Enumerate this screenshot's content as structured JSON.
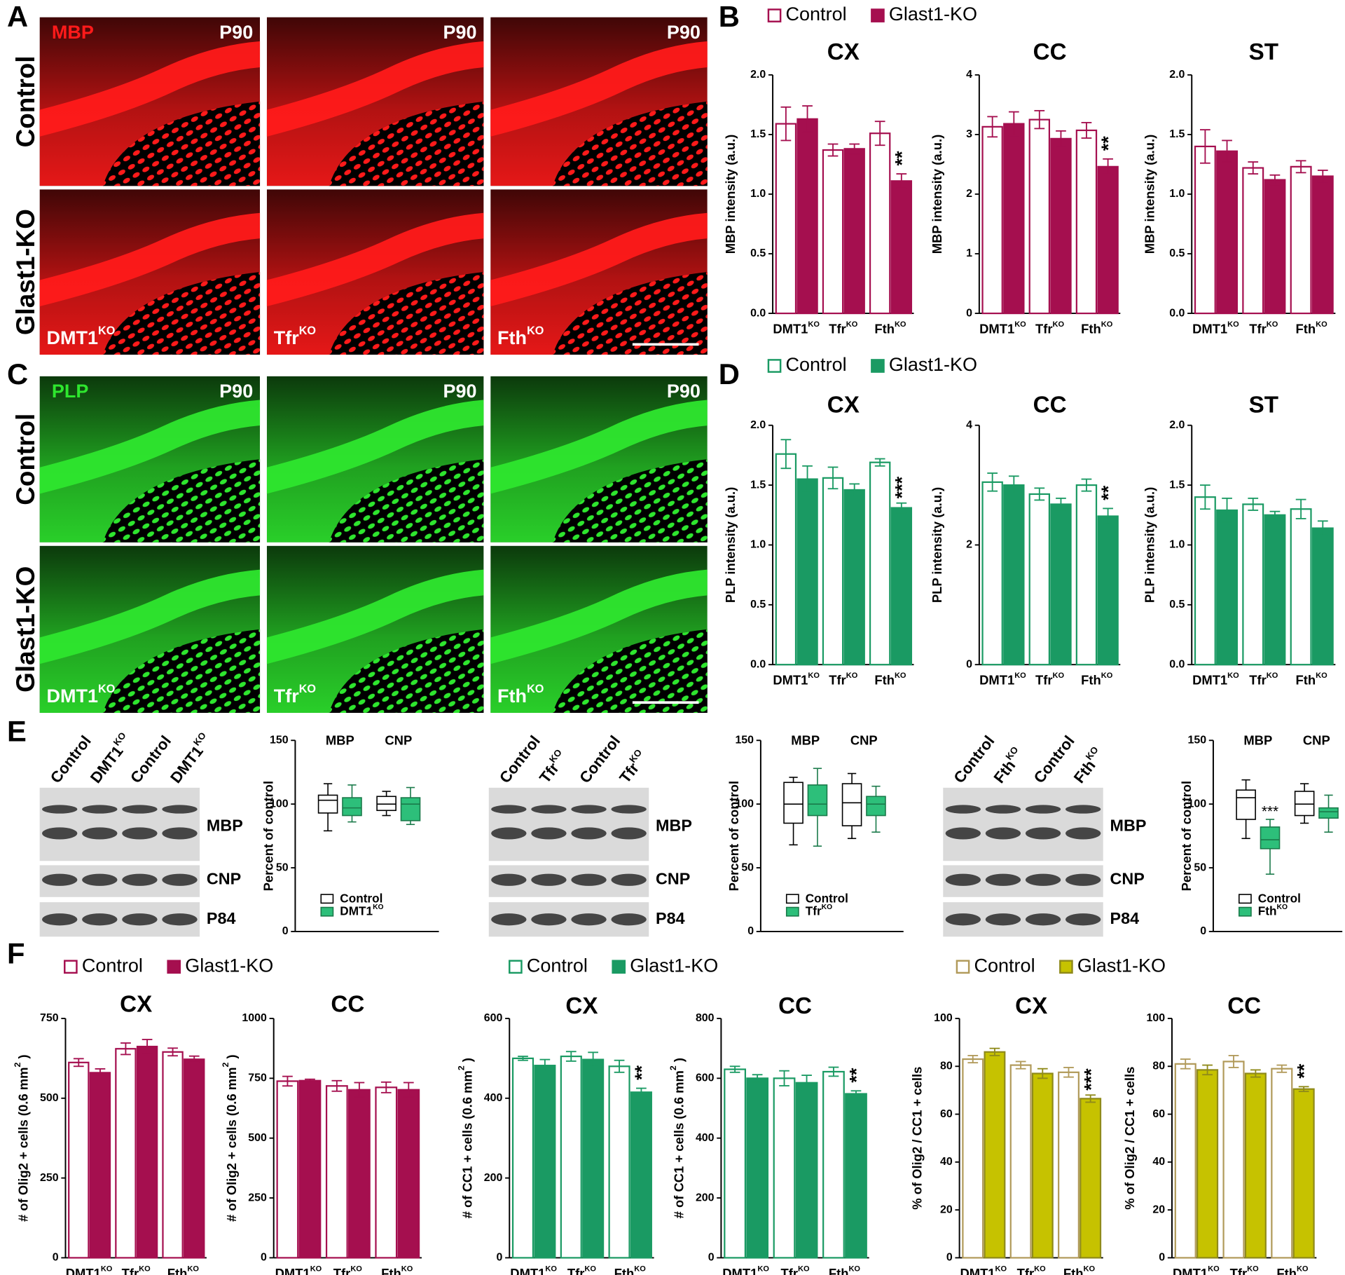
{
  "panel_labels": [
    "A",
    "B",
    "C",
    "D",
    "E",
    "F"
  ],
  "image_panels": [
    {
      "stain": "MBP",
      "color": "#ff1a1a",
      "age": "P90",
      "rows": [
        "Control",
        "Glast1-KO"
      ],
      "columns": [
        {
          "label": "DMT1",
          "superscript": "KO"
        },
        {
          "label": "Tfr",
          "superscript": "KO"
        },
        {
          "label": "Fth",
          "superscript": "KO"
        }
      ]
    },
    {
      "stain": "PLP",
      "color": "#2ee62e",
      "age": "P90",
      "rows": [
        "Control",
        "Glast1-KO"
      ],
      "columns": [
        {
          "label": "DMT1",
          "superscript": "KO"
        },
        {
          "label": "Tfr",
          "superscript": "KO"
        },
        {
          "label": "Fth",
          "superscript": "KO"
        }
      ]
    }
  ],
  "blots": [
    {
      "lanes": [
        {
          "label": "Control"
        },
        {
          "label": "DMT1",
          "superscript": "KO"
        },
        {
          "label": "Control"
        },
        {
          "label": "DMT1",
          "superscript": "KO"
        }
      ],
      "bands": [
        "MBP",
        "CNP",
        "P84"
      ]
    },
    {
      "lanes": [
        {
          "label": "Control"
        },
        {
          "label": "Tfr",
          "superscript": "KO"
        },
        {
          "label": "Control"
        },
        {
          "label": "Tfr",
          "superscript": "KO"
        }
      ],
      "bands": [
        "MBP",
        "CNP",
        "P84"
      ]
    },
    {
      "lanes": [
        {
          "label": "Control"
        },
        {
          "label": "Fth",
          "superscript": "KO"
        },
        {
          "label": "Control"
        },
        {
          "label": "Fth",
          "superscript": "KO"
        }
      ],
      "bands": [
        "MBP",
        "CNP",
        "P84"
      ]
    }
  ],
  "chart_data": [
    {
      "type": "bar",
      "title": "CX",
      "ylabel": "MBP intensity (a.u.)",
      "categories": [
        "DMT1",
        "Tfr",
        "Fth"
      ],
      "category_superscript": "KO",
      "ylim": [
        0,
        2
      ],
      "yticks": [
        {
          "value": 0,
          "label": "0.0"
        },
        0.5,
        {
          "value": 1,
          "label": "1.0"
        },
        1.5,
        {
          "value": 2,
          "label": "2.0"
        }
      ],
      "series": [
        {
          "name": "Control",
          "color": "#ffffff",
          "edge": "#a50f4f",
          "values": [
            1.59,
            1.37,
            1.51
          ],
          "errors": [
            0.14,
            0.05,
            0.1
          ]
        },
        {
          "name": "Glast1-KO",
          "color": "#a50f4f",
          "edge": "#a50f4f",
          "values": [
            1.63,
            1.38,
            1.11
          ],
          "errors": [
            0.11,
            0.04,
            0.06
          ]
        }
      ],
      "significance": [
        null,
        null,
        "**"
      ]
    },
    {
      "type": "bar",
      "title": "CC",
      "ylabel": "MBP intensity (a.u.)",
      "categories": [
        "DMT1",
        "Tfr",
        "Fth"
      ],
      "category_superscript": "KO",
      "ylim": [
        0,
        4
      ],
      "yticks": [
        0,
        1,
        2,
        3,
        4
      ],
      "series": [
        {
          "name": "Control",
          "color": "#ffffff",
          "edge": "#a50f4f",
          "values": [
            3.13,
            3.25,
            3.07
          ],
          "errors": [
            0.17,
            0.15,
            0.13
          ]
        },
        {
          "name": "Glast1-KO",
          "color": "#a50f4f",
          "edge": "#a50f4f",
          "values": [
            3.18,
            2.93,
            2.46
          ],
          "errors": [
            0.2,
            0.13,
            0.13
          ]
        }
      ],
      "significance": [
        null,
        null,
        "**"
      ]
    },
    {
      "type": "bar",
      "title": "ST",
      "ylabel": "MBP intensity (a.u.)",
      "categories": [
        "DMT1",
        "Tfr",
        "Fth"
      ],
      "category_superscript": "KO",
      "ylim": [
        0,
        2
      ],
      "yticks": [
        {
          "value": 0,
          "label": "0.0"
        },
        0.5,
        {
          "value": 1,
          "label": "1.0"
        },
        1.5,
        {
          "value": 2,
          "label": "2.0"
        }
      ],
      "series": [
        {
          "name": "Control",
          "color": "#ffffff",
          "edge": "#a50f4f",
          "values": [
            1.4,
            1.22,
            1.23
          ],
          "errors": [
            0.14,
            0.05,
            0.05
          ]
        },
        {
          "name": "Glast1-KO",
          "color": "#a50f4f",
          "edge": "#a50f4f",
          "values": [
            1.36,
            1.12,
            1.15
          ],
          "errors": [
            0.09,
            0.04,
            0.05
          ]
        }
      ],
      "significance": [
        null,
        null,
        null
      ]
    },
    {
      "type": "bar",
      "title": "CX",
      "ylabel": "PLP intensity (a.u.)",
      "categories": [
        "DMT1",
        "Tfr",
        "Fth"
      ],
      "category_superscript": "KO",
      "ylim": [
        0,
        2
      ],
      "yticks": [
        {
          "value": 0,
          "label": "0.0"
        },
        0.5,
        {
          "value": 1,
          "label": "1.0"
        },
        1.5,
        {
          "value": 2,
          "label": "2.0"
        }
      ],
      "series": [
        {
          "name": "Control",
          "color": "#ffffff",
          "edge": "#1a9a63",
          "values": [
            1.76,
            1.56,
            1.69
          ],
          "errors": [
            0.12,
            0.09,
            0.03
          ]
        },
        {
          "name": "Glast1-KO",
          "color": "#1a9a63",
          "edge": "#1a9a63",
          "values": [
            1.55,
            1.46,
            1.31
          ],
          "errors": [
            0.11,
            0.05,
            0.04
          ]
        }
      ],
      "significance": [
        null,
        null,
        "***"
      ]
    },
    {
      "type": "bar",
      "title": "CC",
      "ylabel": "PLP intensity (a.u.)",
      "categories": [
        "DMT1",
        "Tfr",
        "Fth"
      ],
      "category_superscript": "KO",
      "ylim": [
        0,
        4
      ],
      "yticks": [
        0,
        2,
        4
      ],
      "series": [
        {
          "name": "Control",
          "color": "#ffffff",
          "edge": "#1a9a63",
          "values": [
            3.05,
            2.85,
            3.0
          ],
          "errors": [
            0.15,
            0.1,
            0.1
          ]
        },
        {
          "name": "Glast1-KO",
          "color": "#1a9a63",
          "edge": "#1a9a63",
          "values": [
            3.0,
            2.68,
            2.48
          ],
          "errors": [
            0.15,
            0.1,
            0.13
          ]
        }
      ],
      "significance": [
        null,
        null,
        "**"
      ]
    },
    {
      "type": "bar",
      "title": "ST",
      "ylabel": "PLP intensity (a.u.)",
      "categories": [
        "DMT1",
        "Tfr",
        "Fth"
      ],
      "category_superscript": "KO",
      "ylim": [
        0,
        2
      ],
      "yticks": [
        {
          "value": 0,
          "label": "0.0"
        },
        0.5,
        {
          "value": 1,
          "label": "1.0"
        },
        1.5,
        {
          "value": 2,
          "label": "2.0"
        }
      ],
      "series": [
        {
          "name": "Control",
          "color": "#ffffff",
          "edge": "#1a9a63",
          "values": [
            1.4,
            1.34,
            1.3
          ],
          "errors": [
            0.1,
            0.05,
            0.08
          ]
        },
        {
          "name": "Glast1-KO",
          "color": "#1a9a63",
          "edge": "#1a9a63",
          "values": [
            1.29,
            1.25,
            1.14
          ],
          "errors": [
            0.1,
            0.03,
            0.06
          ]
        }
      ],
      "significance": [
        null,
        null,
        null
      ]
    },
    {
      "type": "box",
      "ylabel": "Percent of control",
      "categories": [
        "MBP",
        "CNP"
      ],
      "ylim": [
        0,
        150
      ],
      "yticks": [
        0,
        50,
        100,
        150
      ],
      "series": [
        {
          "name": "Control",
          "color": "#ffffff",
          "edge": "#000000",
          "values": [
            {
              "min": 79,
              "q1": 93,
              "median": 103,
              "q3": 107,
              "max": 116
            },
            {
              "min": 91,
              "q1": 95,
              "median": 100,
              "q3": 106,
              "max": 110
            }
          ]
        },
        {
          "name": "DMT1",
          "superscript": "KO",
          "color": "#2dbf7a",
          "edge": "#1a7a4a",
          "values": [
            {
              "min": 86,
              "q1": 91,
              "median": 97,
              "q3": 105,
              "max": 115
            },
            {
              "min": 84,
              "q1": 87,
              "median": 100,
              "q3": 105,
              "max": 113
            }
          ]
        }
      ],
      "significance": [
        null,
        null
      ]
    },
    {
      "type": "box",
      "ylabel": "Percent of control",
      "categories": [
        "MBP",
        "CNP"
      ],
      "ylim": [
        0,
        150
      ],
      "yticks": [
        0,
        50,
        100,
        150
      ],
      "series": [
        {
          "name": "Control",
          "color": "#ffffff",
          "edge": "#000000",
          "values": [
            {
              "min": 68,
              "q1": 85,
              "median": 100,
              "q3": 117,
              "max": 121
            },
            {
              "min": 73,
              "q1": 83,
              "median": 101,
              "q3": 116,
              "max": 124
            }
          ]
        },
        {
          "name": "Tfr",
          "superscript": "KO",
          "color": "#2dbf7a",
          "edge": "#1a7a4a",
          "values": [
            {
              "min": 67,
              "q1": 91,
              "median": 100,
              "q3": 115,
              "max": 128
            },
            {
              "min": 78,
              "q1": 91,
              "median": 100,
              "q3": 106,
              "max": 114
            }
          ]
        }
      ],
      "significance": [
        null,
        null
      ]
    },
    {
      "type": "box",
      "ylabel": "Percent of control",
      "categories": [
        "MBP",
        "CNP"
      ],
      "ylim": [
        0,
        150
      ],
      "yticks": [
        0,
        50,
        100,
        150
      ],
      "series": [
        {
          "name": "Control",
          "color": "#ffffff",
          "edge": "#000000",
          "values": [
            {
              "min": 73,
              "q1": 88,
              "median": 105,
              "q3": 111,
              "max": 119
            },
            {
              "min": 85,
              "q1": 91,
              "median": 100,
              "q3": 110,
              "max": 116
            }
          ]
        },
        {
          "name": "Fth",
          "superscript": "KO",
          "color": "#2dbf7a",
          "edge": "#1a7a4a",
          "values": [
            {
              "min": 45,
              "q1": 65,
              "median": 72,
              "q3": 82,
              "max": 88
            },
            {
              "min": 78,
              "q1": 89,
              "median": 94,
              "q3": 97,
              "max": 107
            }
          ]
        }
      ],
      "significance": [
        "***",
        null
      ]
    },
    {
      "type": "bar",
      "title": "CX",
      "ylabel": "# of Olig2 + cells (0.6 mm",
      "ylabel_superscript": "2",
      "ylabel_suffix": " )",
      "categories": [
        "DMT1",
        "Tfr",
        "Fth"
      ],
      "category_superscript": "KO",
      "ylim": [
        0,
        750
      ],
      "yticks": [
        0,
        250,
        500,
        750
      ],
      "series": [
        {
          "name": "Control",
          "color": "#ffffff",
          "edge": "#a50f4f",
          "values": [
            612,
            655,
            645
          ],
          "errors": [
            12,
            18,
            12
          ]
        },
        {
          "name": "Glast1-KO",
          "color": "#a50f4f",
          "edge": "#a50f4f",
          "values": [
            580,
            662,
            622
          ],
          "errors": [
            12,
            22,
            10
          ]
        }
      ],
      "significance": [
        null,
        null,
        null
      ]
    },
    {
      "type": "bar",
      "title": "CC",
      "ylabel": "# of Olig2 + cells (0.6 mm",
      "ylabel_superscript": "2",
      "ylabel_suffix": " )",
      "categories": [
        "DMT1",
        "Tfr",
        "Fth"
      ],
      "category_superscript": "KO",
      "ylim": [
        0,
        1000
      ],
      "yticks": [
        0,
        250,
        500,
        750,
        1000
      ],
      "series": [
        {
          "name": "Control",
          "color": "#ffffff",
          "edge": "#a50f4f",
          "values": [
            738,
            718,
            712
          ],
          "errors": [
            20,
            22,
            22
          ]
        },
        {
          "name": "Glast1-KO",
          "color": "#a50f4f",
          "edge": "#a50f4f",
          "values": [
            740,
            702,
            702
          ],
          "errors": [
            6,
            30,
            30
          ]
        }
      ],
      "significance": [
        null,
        null,
        null
      ]
    },
    {
      "type": "bar",
      "title": "CX",
      "ylabel": "# of CC1 + cells (0.6 mm",
      "ylabel_superscript": "2",
      "ylabel_suffix": " )",
      "categories": [
        "DMT1",
        "Tfr",
        "Fth"
      ],
      "category_superscript": "KO",
      "ylim": [
        0,
        600
      ],
      "yticks": [
        0,
        200,
        400,
        600
      ],
      "series": [
        {
          "name": "Control",
          "color": "#ffffff",
          "edge": "#1a9a63",
          "values": [
            500,
            505,
            480
          ],
          "errors": [
            5,
            12,
            15
          ]
        },
        {
          "name": "Glast1-KO",
          "color": "#1a9a63",
          "edge": "#1a9a63",
          "values": [
            482,
            497,
            415
          ],
          "errors": [
            15,
            18,
            10
          ]
        }
      ],
      "significance": [
        null,
        null,
        "**"
      ]
    },
    {
      "type": "bar",
      "title": "CC",
      "ylabel": "# of CC1 + cells (0.6 mm",
      "ylabel_superscript": "2",
      "ylabel_suffix": " )",
      "categories": [
        "DMT1",
        "Tfr",
        "Fth"
      ],
      "category_superscript": "KO",
      "ylim": [
        0,
        800
      ],
      "yticks": [
        0,
        200,
        400,
        600,
        800
      ],
      "series": [
        {
          "name": "Control",
          "color": "#ffffff",
          "edge": "#1a9a63",
          "values": [
            630,
            600,
            622
          ],
          "errors": [
            10,
            25,
            15
          ]
        },
        {
          "name": "Glast1-KO",
          "color": "#1a9a63",
          "edge": "#1a9a63",
          "values": [
            600,
            585,
            548
          ],
          "errors": [
            12,
            25,
            10
          ]
        }
      ],
      "significance": [
        null,
        null,
        "**"
      ]
    },
    {
      "type": "bar",
      "title": "CX",
      "ylabel": "% of Olig2 / CC1 + cells",
      "categories": [
        "DMT1",
        "Tfr",
        "Fth"
      ],
      "category_superscript": "KO",
      "ylim": [
        0,
        100
      ],
      "yticks": [
        0,
        20,
        40,
        60,
        80,
        100
      ],
      "series": [
        {
          "name": "Control",
          "color": "#ffffff",
          "edge": "#b19a5a",
          "values": [
            83,
            80.5,
            77.5
          ],
          "errors": [
            1.5,
            1.5,
            2
          ]
        },
        {
          "name": "Glast1-KO",
          "color": "#c6c200",
          "edge": "#8f8a1a",
          "values": [
            86,
            77,
            66.5
          ],
          "errors": [
            1.5,
            2,
            1.5
          ]
        }
      ],
      "significance": [
        null,
        null,
        "***"
      ]
    },
    {
      "type": "bar",
      "title": "CC",
      "ylabel": "% of Olig2 / CC1 + cells",
      "categories": [
        "DMT1",
        "Tfr",
        "Fth"
      ],
      "category_superscript": "KO",
      "ylim": [
        0,
        100
      ],
      "yticks": [
        0,
        20,
        40,
        60,
        80,
        100
      ],
      "series": [
        {
          "name": "Control",
          "color": "#ffffff",
          "edge": "#b19a5a",
          "values": [
            81,
            82,
            79
          ],
          "errors": [
            2,
            2.5,
            1.5
          ]
        },
        {
          "name": "Glast1-KO",
          "color": "#c6c200",
          "edge": "#8f8a1a",
          "values": [
            78.5,
            77,
            70.5
          ],
          "errors": [
            2,
            1.5,
            1
          ]
        }
      ],
      "significance": [
        null,
        null,
        "**"
      ]
    }
  ]
}
